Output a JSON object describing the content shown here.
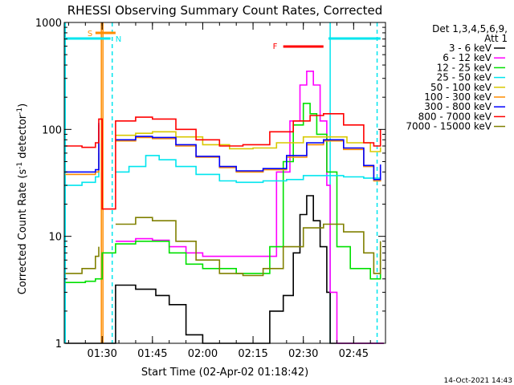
{
  "title": "RHESSI Observing Summary Count Rates, Corrected",
  "legend": {
    "det_line1": "Det 1,3,4,5,6,9,",
    "det_line2": "Att 1"
  },
  "footer": {
    "date": "14-Oct-2021 14:43"
  },
  "markers": {
    "s_label": "S",
    "n_label": "N",
    "f_label": "F",
    "colors": {
      "s": "#ff8c00",
      "f": "#ff0000",
      "n": "#00e5ee",
      "vline": "#00e5ee",
      "s_vline": "#ff8c00"
    },
    "n_bar_ranges": [
      [
        "01:18:42",
        "01:32:30"
      ],
      [
        "02:37:30",
        "02:53:00"
      ]
    ],
    "s_bar_range": [
      "01:28:00",
      "01:34:00"
    ],
    "f_bar_range": [
      "02:24:00",
      "02:36:00"
    ],
    "n_dashed_times": [
      "01:33:00",
      "02:52:00"
    ],
    "n_solid_times": [
      "01:19:00",
      "02:38:00"
    ],
    "s_time": "01:30:00"
  },
  "chart_data": {
    "type": "line",
    "title": "RHESSI Observing Summary Count Rates, Corrected",
    "xlabel": "Start Time (02-Apr-02 01:18:42)",
    "ylabel": "Corrected Count Rate (s^-1 detector^-1)",
    "x_range": [
      "01:18:42",
      "02:54:30"
    ],
    "y_range": [
      1,
      1000
    ],
    "y_scale": "log",
    "x_ticks": [
      "01:30",
      "01:45",
      "02:00",
      "02:15",
      "02:30",
      "02:45"
    ],
    "y_ticks": [
      "1",
      "10",
      "100",
      "1000"
    ],
    "gaps": [
      [
        "01:30:00",
        "01:34:00"
      ]
    ],
    "series": [
      {
        "name": "3 - 6 keV",
        "color": "#000000",
        "points": [
          [
            "01:19",
            "1"
          ],
          [
            "01:27",
            "1"
          ],
          [
            "01:33",
            "1"
          ],
          [
            "01:34",
            "3.5"
          ],
          [
            "01:40",
            "3.2"
          ],
          [
            "01:46",
            "2.8"
          ],
          [
            "01:50",
            "2.3"
          ],
          [
            "01:55",
            "1.2"
          ],
          [
            "02:00",
            "1"
          ],
          [
            "02:15",
            "1"
          ],
          [
            "02:20",
            "2"
          ],
          [
            "02:24",
            "2.8"
          ],
          [
            "02:27",
            "7"
          ],
          [
            "02:29",
            "16"
          ],
          [
            "02:31",
            "24"
          ],
          [
            "02:33",
            "14"
          ],
          [
            "02:35",
            "8"
          ],
          [
            "02:37",
            "3"
          ],
          [
            "02:38",
            "1"
          ],
          [
            "02:54",
            "1"
          ]
        ]
      },
      {
        "name": "6 - 12 keV",
        "color": "#ff00ff",
        "points": [
          [
            "01:34",
            "9"
          ],
          [
            "01:40",
            "9.5"
          ],
          [
            "01:45",
            "9.2"
          ],
          [
            "01:50",
            "8"
          ],
          [
            "01:55",
            "7"
          ],
          [
            "02:00",
            "6.5"
          ],
          [
            "02:10",
            "6.5"
          ],
          [
            "02:18",
            "6.5"
          ],
          [
            "02:22",
            "40"
          ],
          [
            "02:26",
            "120"
          ],
          [
            "02:29",
            "260"
          ],
          [
            "02:31",
            "350"
          ],
          [
            "02:33",
            "260"
          ],
          [
            "02:35",
            "120"
          ],
          [
            "02:37",
            "30"
          ],
          [
            "02:38",
            "3"
          ],
          [
            "02:40",
            "1"
          ],
          [
            "02:54",
            "1"
          ]
        ]
      },
      {
        "name": "12 - 25 keV",
        "color": "#00e000",
        "points": [
          [
            "01:19",
            "3.7"
          ],
          [
            "01:25",
            "3.8"
          ],
          [
            "01:28",
            "4"
          ],
          [
            "01:30",
            "7"
          ],
          [
            "01:34",
            "8.5"
          ],
          [
            "01:40",
            "9"
          ],
          [
            "01:45",
            "9"
          ],
          [
            "01:50",
            "7"
          ],
          [
            "01:55",
            "5.5"
          ],
          [
            "02:00",
            "5"
          ],
          [
            "02:10",
            "4.5"
          ],
          [
            "02:17",
            "4.5"
          ],
          [
            "02:20",
            "8"
          ],
          [
            "02:24",
            "50"
          ],
          [
            "02:27",
            "110"
          ],
          [
            "02:30",
            "175"
          ],
          [
            "02:32",
            "140"
          ],
          [
            "02:34",
            "90"
          ],
          [
            "02:37",
            "40"
          ],
          [
            "02:40",
            "8"
          ],
          [
            "02:44",
            "5"
          ],
          [
            "02:50",
            "4"
          ],
          [
            "02:53",
            "7"
          ]
        ]
      },
      {
        "name": "25 - 50 keV",
        "color": "#00e5ee",
        "points": [
          [
            "01:19",
            "30"
          ],
          [
            "01:24",
            "32"
          ],
          [
            "01:28",
            "36"
          ],
          [
            "01:29",
            "60"
          ],
          [
            "01:34",
            "40"
          ],
          [
            "01:38",
            "45"
          ],
          [
            "01:43",
            "57"
          ],
          [
            "01:47",
            "52"
          ],
          [
            "01:52",
            "45"
          ],
          [
            "01:58",
            "38"
          ],
          [
            "02:05",
            "33"
          ],
          [
            "02:10",
            "32"
          ],
          [
            "02:18",
            "33"
          ],
          [
            "02:25",
            "34"
          ],
          [
            "02:30",
            "37"
          ],
          [
            "02:36",
            "37"
          ],
          [
            "02:42",
            "36"
          ],
          [
            "02:48",
            "35"
          ],
          [
            "02:53",
            "36"
          ]
        ]
      },
      {
        "name": "50 - 100 keV",
        "color": "#d8c800",
        "points": [
          [
            "01:34",
            "88"
          ],
          [
            "01:40",
            "92"
          ],
          [
            "01:45",
            "95"
          ],
          [
            "01:52",
            "85"
          ],
          [
            "02:00",
            "72"
          ],
          [
            "02:08",
            "66"
          ],
          [
            "02:15",
            "67"
          ],
          [
            "02:22",
            "75"
          ],
          [
            "02:30",
            "85"
          ],
          [
            "02:37",
            "85"
          ],
          [
            "02:43",
            "75"
          ],
          [
            "02:50",
            "62"
          ],
          [
            "02:53",
            "68"
          ]
        ]
      },
      {
        "name": "100 - 300 keV",
        "color": "#ff8c00",
        "points": [
          [
            "01:19",
            "38"
          ],
          [
            "01:24",
            "38"
          ],
          [
            "01:28",
            "40"
          ],
          [
            "01:29",
            "110"
          ],
          [
            "01:34",
            "78"
          ],
          [
            "01:40",
            "84"
          ],
          [
            "01:45",
            "82"
          ],
          [
            "01:52",
            "70"
          ],
          [
            "01:58",
            "55"
          ],
          [
            "02:05",
            "44"
          ],
          [
            "02:10",
            "40"
          ],
          [
            "02:18",
            "42"
          ],
          [
            "02:25",
            "55"
          ],
          [
            "02:31",
            "72"
          ],
          [
            "02:36",
            "78"
          ],
          [
            "02:42",
            "65"
          ],
          [
            "02:48",
            "45"
          ],
          [
            "02:51",
            "33"
          ],
          [
            "02:53",
            "45"
          ]
        ]
      },
      {
        "name": "300 - 800 keV",
        "color": "#0000ff",
        "points": [
          [
            "01:19",
            "40"
          ],
          [
            "01:24",
            "40"
          ],
          [
            "01:28",
            "42"
          ],
          [
            "01:29",
            "115"
          ],
          [
            "01:34",
            "80"
          ],
          [
            "01:40",
            "86"
          ],
          [
            "01:45",
            "84"
          ],
          [
            "01:52",
            "72"
          ],
          [
            "01:58",
            "56"
          ],
          [
            "02:05",
            "45"
          ],
          [
            "02:10",
            "41"
          ],
          [
            "02:18",
            "43"
          ],
          [
            "02:25",
            "57"
          ],
          [
            "02:31",
            "75"
          ],
          [
            "02:36",
            "80"
          ],
          [
            "02:42",
            "67"
          ],
          [
            "02:48",
            "46"
          ],
          [
            "02:51",
            "34"
          ],
          [
            "02:53",
            "47"
          ]
        ]
      },
      {
        "name": "800 - 7000 keV",
        "color": "#ff0000",
        "points": [
          [
            "01:19",
            "70"
          ],
          [
            "01:24",
            "68"
          ],
          [
            "01:28",
            "75"
          ],
          [
            "01:29",
            "125"
          ],
          [
            "01:30",
            "18"
          ],
          [
            "01:34",
            "120"
          ],
          [
            "01:40",
            "130"
          ],
          [
            "01:45",
            "125"
          ],
          [
            "01:52",
            "100"
          ],
          [
            "01:58",
            "80"
          ],
          [
            "02:05",
            "70"
          ],
          [
            "02:12",
            "72"
          ],
          [
            "02:20",
            "95"
          ],
          [
            "02:27",
            "120"
          ],
          [
            "02:32",
            "135"
          ],
          [
            "02:36",
            "140"
          ],
          [
            "02:42",
            "110"
          ],
          [
            "02:48",
            "75"
          ],
          [
            "02:51",
            "70"
          ],
          [
            "02:53",
            "100"
          ]
        ]
      },
      {
        "name": "7000 - 15000 keV",
        "color": "#808000",
        "points": [
          [
            "01:19",
            "4.5"
          ],
          [
            "01:24",
            "5"
          ],
          [
            "01:28",
            "6.5"
          ],
          [
            "01:29",
            "8"
          ],
          [
            "01:34",
            "13"
          ],
          [
            "01:40",
            "15"
          ],
          [
            "01:45",
            "14"
          ],
          [
            "01:52",
            "9"
          ],
          [
            "01:58",
            "6"
          ],
          [
            "02:05",
            "4.5"
          ],
          [
            "02:12",
            "4.3"
          ],
          [
            "02:18",
            "5"
          ],
          [
            "02:24",
            "8"
          ],
          [
            "02:30",
            "12"
          ],
          [
            "02:36",
            "13"
          ],
          [
            "02:42",
            "11"
          ],
          [
            "02:48",
            "7"
          ],
          [
            "02:51",
            "4.5"
          ],
          [
            "02:53",
            "9"
          ]
        ]
      }
    ]
  }
}
